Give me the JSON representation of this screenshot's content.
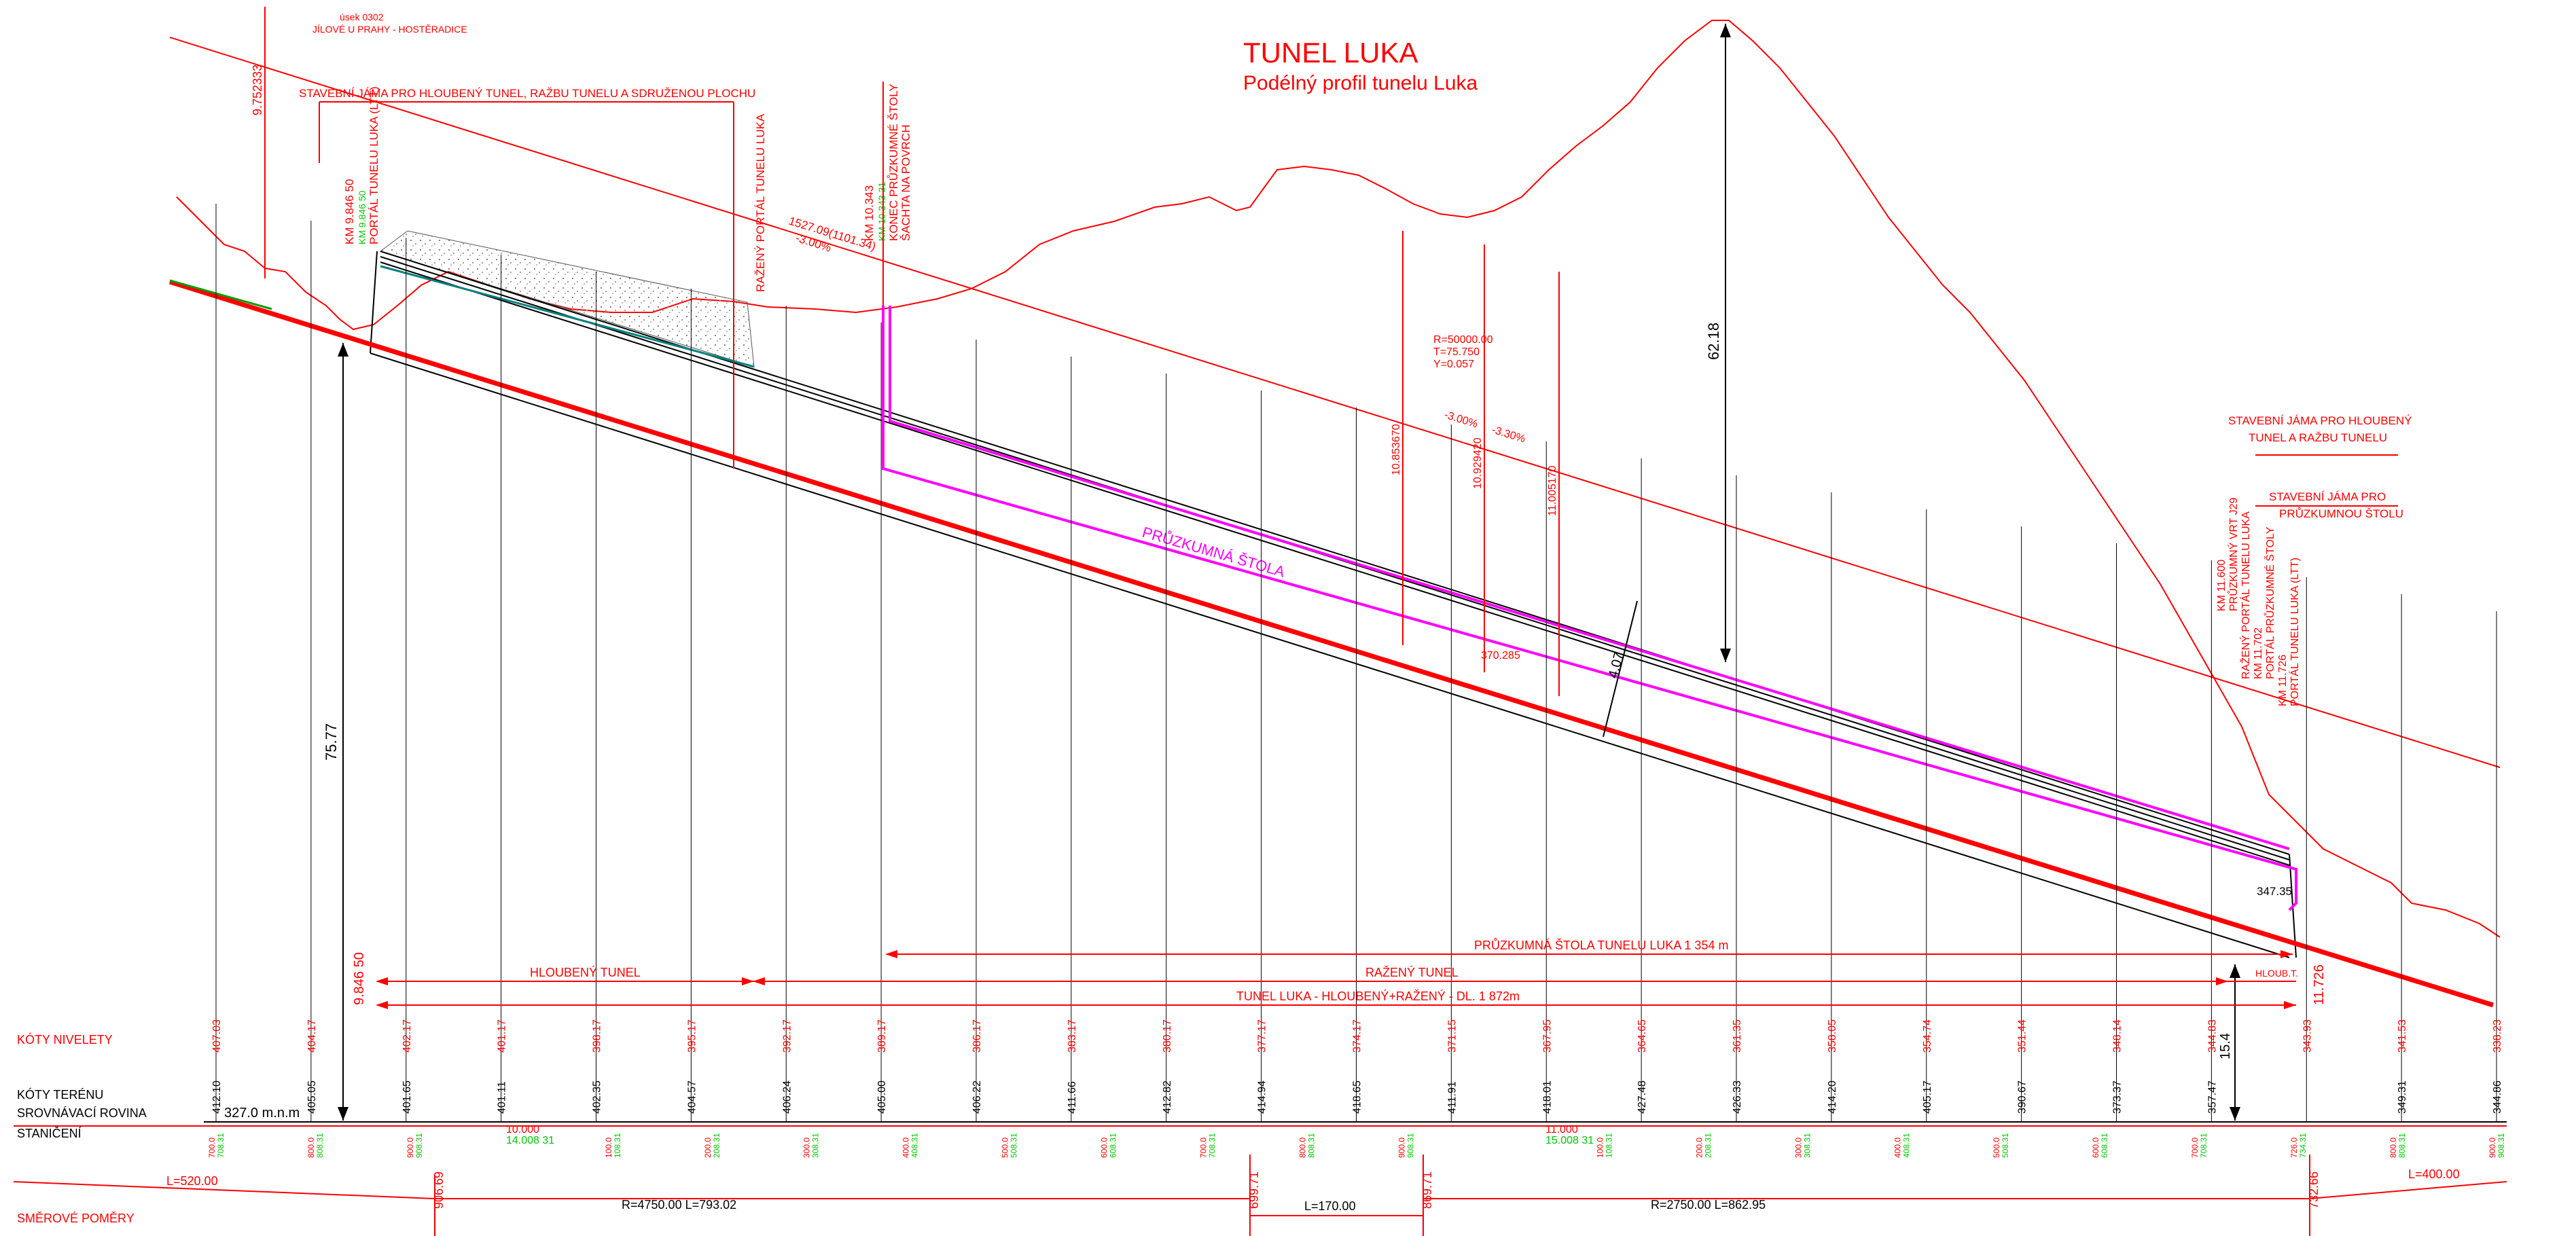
{
  "header": {
    "section_code": "úsek 0302",
    "section_name": "JÍLOVÉ U PRAHY - HOSTĚRADICE",
    "title": "TUNEL  LUKA",
    "subtitle": "Podélný profil tunelu Luka"
  },
  "annotations": {
    "stavebni_jama_left": "STAVEBNÍ  JÁMA PRO  HLOUBENÝ TUNEL, RAŽBU TUNELU A SDRUŽENOU PLOCHU",
    "elev_top_left": "9.752333",
    "km_left_portal": "KM 9.846 50",
    "km_left_portal_green": "KM 9.846 50",
    "portal_luka_ltt": "PORTÁL TUNELU LUKA (LTT)",
    "razeny_portal_left": "RAŽENÝ PORTÁL TUNELU LUKA",
    "grade_left": "1527.09(1101.34)",
    "grade_left_pct": "-3.00%",
    "km_stola_end": "KM 10.343",
    "km_stola_end_green": "KM 10.343 31",
    "konec_stoly": "KONEC PRŮZKUMNÉ ŠTOLY",
    "sachta": "ŠACHTA NA POVRCH",
    "curve_r": "R=50000.00",
    "curve_t": "T=75.750",
    "curve_y": "Y=0.057",
    "grade_mid_1": "-3.00%",
    "grade_mid_2": "-3.30%",
    "elev_v1": "10.853670",
    "elev_v2": "10.929420",
    "elev_v3": "11.005170",
    "dim_62": "62.18",
    "dim_75": "75.77",
    "dim_4": "4.07",
    "dim_370": "370.285",
    "pruzkumna_stola": "PRŮZKUMNÁ ŠTOLA",
    "stavebni_jama_right_1": "STAVEBNÍ JÁMA PRO  HLOUBENÝ",
    "stavebni_jama_right_2": "TUNEL A RAŽBU TUNELU",
    "stavebni_jama_stola_1": "STAVEBNÍ JÁMA PRO",
    "stavebni_jama_stola_2": "PRŮZKUMNOU ŠTOLU",
    "km_right_1": "KM 11.600",
    "km_right_1_txt": "PRŮZKUMNÝ VRT J29",
    "km_right_2_txt": "RAŽENÝ PORTÁL TUNELU LUKA",
    "km_right_3": "KM 11.702",
    "km_right_3_txt": "PORTÁL PRŮZKUMNÉ ŠTOLY",
    "km_right_4": "KM 11.726",
    "km_right_4_txt": "PORTÁL TUNELU LUKA (LTT)",
    "elev_347": "347.35",
    "dim_15": "15.4",
    "km_end": "11.726",
    "km_start": "9.846 50",
    "range_stola": "PRŮZKUMNÁ ŠTOLA TUNELU LUKA 1 354 m",
    "range_hloubeny": "HLOUBENÝ TUNEL",
    "range_razeny": "RAŽENÝ TUNEL",
    "range_total": "TUNEL LUKA - HLOUBENÝ+RAŽENÝ - DL. 1 872m",
    "range_hloub_t": "HLOUB.T."
  },
  "table": {
    "row_labels": {
      "koty_nivelety": "KÓTY NIVELETY",
      "koty_terenu": "KÓTY TERÉNU",
      "srovnavaci": "SROVNÁVACÍ ROVINA",
      "staniceni": "STANIČENÍ",
      "smerove": "SMĚROVÉ POMĚRY"
    },
    "datum": "327.0 m.n.m",
    "niveleta": [
      "407.03",
      "404.17",
      "402.17",
      "401.17",
      "398.17",
      "395.17",
      "392.17",
      "389.17",
      "386.17",
      "383.17",
      "380.17",
      "377.17",
      "374.17",
      "371.15",
      "367.95",
      "364.65",
      "361.35",
      "358.05",
      "354.74",
      "351.44",
      "348.14",
      "344.83",
      "343.93",
      "341.53",
      "338.23"
    ],
    "teren": [
      "412.10",
      "405.05",
      "401.65",
      "401.11",
      "402.35",
      "404.57",
      "406.24",
      "405.00",
      "406.22",
      "411.66",
      "412.82",
      "414.94",
      "418.65",
      "411.91",
      "418.01",
      "427.48",
      "426.33",
      "414.20",
      "405.17",
      "390.67",
      "373.37",
      "357.47",
      "",
      "349.31",
      "344.86"
    ],
    "stations": [
      "700.0",
      "800.0",
      "900.0",
      "0.000",
      "100.0",
      "200.0",
      "300.0",
      "400.0",
      "500.0",
      "600.0",
      "700.0",
      "800.0",
      "900.0",
      "11.000",
      "100.0",
      "200.0",
      "300.0",
      "400.0",
      "500.0",
      "600.0",
      "700.0",
      "726.0",
      "800.0",
      "900.0"
    ],
    "stations_green": [
      "708.31",
      "808.31",
      "908.31",
      "",
      "108.31",
      "208.31",
      "308.31",
      "408.31",
      "508.31",
      "608.31",
      "708.31",
      "808.31",
      "908.31",
      "",
      "108.31",
      "208.31",
      "308.31",
      "408.31",
      "508.31",
      "608.31",
      "708.31",
      "734.31",
      "808.31",
      "908.31"
    ],
    "km_10": "10.000",
    "km_10_green": "14.008 31",
    "km_11": "11.000",
    "km_11_green": "15.008 31",
    "smerove": {
      "l_520": "L=520.00",
      "l_400": "L=400.00",
      "r_4750": "R=4750.00  L=793.02",
      "l_170": "L=170.00",
      "r_2750": "R=2750.00  L=862.95",
      "km_906": "906.69",
      "km_699": "699.71",
      "km_869": "869.71",
      "km_732": "732.66"
    }
  },
  "colors": {
    "red": "#ff0000",
    "green": "#00c800",
    "magenta": "#ff00ff",
    "black": "#000000",
    "teal": "#008080"
  }
}
